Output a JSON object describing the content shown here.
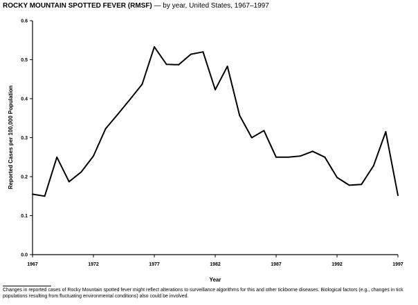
{
  "title_bold": "ROCKY MOUNTAIN SPOTTED FEVER (RMSF)",
  "title_rest": " — by year, United States, 1967–1997",
  "footnote": "Changes in reported cases of Rocky Mountain spotted fever might reflect alterations to surveillance algorithms for this and other tickborne diseases. Biological factors (e.g., changes in tick populations resulting from fluctuating environmental conditions) also could be involved.",
  "chart_data": {
    "type": "line",
    "xlabel": "Year",
    "ylabel": "Reported Cases per 100,000 Population",
    "xlim": [
      1967,
      1997
    ],
    "ylim": [
      0,
      0.6
    ],
    "x_ticks": [
      1967,
      1972,
      1977,
      1982,
      1987,
      1992,
      1997
    ],
    "y_ticks": [
      "0.0",
      "0.1",
      "0.2",
      "0.3",
      "0.4",
      "0.5",
      "0.6"
    ],
    "grid": false,
    "series": [
      {
        "x": [
          1967,
          1968,
          1969,
          1970,
          1971,
          1972,
          1973,
          1974,
          1975,
          1976,
          1977,
          1978,
          1979,
          1980,
          1981,
          1982,
          1983,
          1984,
          1985,
          1986,
          1987,
          1988,
          1989,
          1990,
          1991,
          1992,
          1993,
          1994,
          1995,
          1996,
          1997
        ],
        "values": [
          0.155,
          0.15,
          0.25,
          0.187,
          0.212,
          0.253,
          0.323,
          0.36,
          0.398,
          0.437,
          0.533,
          0.488,
          0.487,
          0.514,
          0.52,
          0.423,
          0.483,
          0.357,
          0.3,
          0.318,
          0.25,
          0.25,
          0.253,
          0.265,
          0.25,
          0.198,
          0.178,
          0.18,
          0.228,
          0.315,
          0.152
        ]
      }
    ]
  }
}
